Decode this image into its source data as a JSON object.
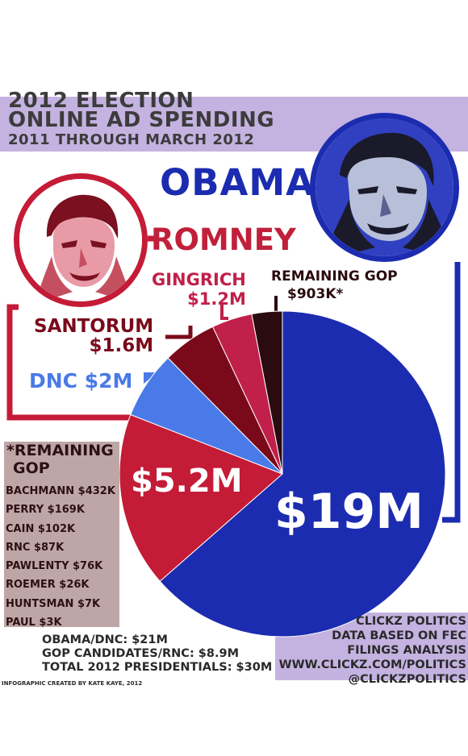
{
  "header": {
    "line1": "2012 ELECTION",
    "line2": "ONLINE AD SPENDING",
    "line3": "2011 THROUGH MARCH 2012"
  },
  "names": {
    "obama": "OBAMA",
    "romney": "ROMNEY"
  },
  "colors": {
    "obama": "#1c2cb0",
    "romney": "#c41b36",
    "dnc": "#4a7ae8",
    "santorum": "#7a0a1a",
    "gingrich": "#c1204a",
    "remaining_gop": "#2a0b10",
    "band": "#c4b2e0"
  },
  "chart_data": {
    "type": "pie",
    "title": "",
    "slices": [
      {
        "label": "OBAMA",
        "value": 19,
        "display": "$19M",
        "color": "#1c2cb0"
      },
      {
        "label": "ROMNEY",
        "value": 5.2,
        "display": "$5.2M",
        "color": "#c41b36"
      },
      {
        "label": "DNC",
        "value": 2,
        "display": "DNC $2M",
        "color": "#4a7ae8"
      },
      {
        "label": "SANTORUM",
        "value": 1.6,
        "display": "$1.6M",
        "color": "#7a0a1a"
      },
      {
        "label": "GINGRICH",
        "value": 1.2,
        "display": "$1.2M",
        "color": "#c1204a"
      },
      {
        "label": "REMAINING GOP",
        "value": 0.903,
        "display": "$903K*",
        "color": "#2a0b10"
      }
    ],
    "labels": {
      "obama": "$19M",
      "romney": "$5.2M",
      "dnc": "DNC $2M",
      "santorum_name": "SANTORUM",
      "santorum_value": "$1.6M",
      "gingrich_name": "GINGRICH",
      "gingrich_value": "$1.2M",
      "remaining_name": "REMAINING GOP",
      "remaining_value": "$903K*"
    }
  },
  "remaining_gop": {
    "title_line1": "*REMAINING",
    "title_line2": "GOP",
    "items": [
      "BACHMANN $432K",
      "PERRY $169K",
      "CAIN $102K",
      "RNC $87K",
      "PAWLENTY $76K",
      "ROEMER $26K",
      "HUNTSMAN $7K",
      "PAUL $3K"
    ]
  },
  "totals": {
    "line1": "OBAMA/DNC: $21M",
    "line2": "GOP CANDIDATES/RNC: $8.9M",
    "line3": "TOTAL 2012 PRESIDENTIALS: $30M"
  },
  "credit": "INFOGRAPHIC CREATED BY KATE KAYE, 2012",
  "source": {
    "line1": "CLICKZ POLITICS",
    "line2": "DATA BASED ON FEC",
    "line3": "FILINGS ANALYSIS",
    "line4": "WWW.CLICKZ.COM/POLITICS",
    "line5": "@CLICKZPOLITICS"
  }
}
